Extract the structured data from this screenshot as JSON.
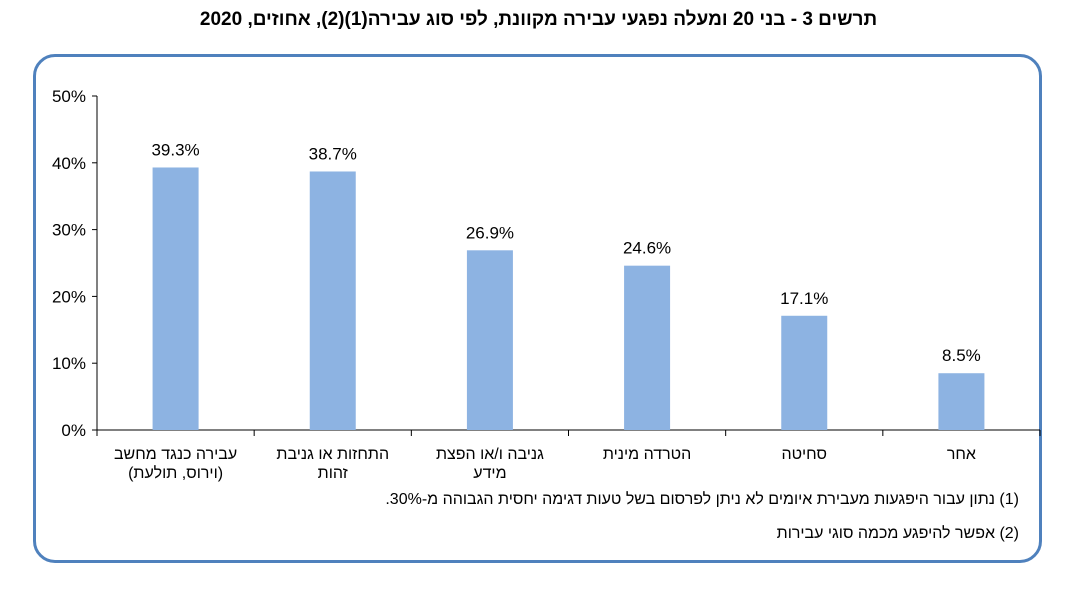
{
  "chart_data": {
    "type": "bar",
    "title": "תרשים 3 - בני 20 ומעלה נפגעי עבירה מקוונת, לפי סוג עבירה(1)(2), אחוזים, 2020",
    "categories": [
      [
        "עבירה כנגד מחשב",
        "(וירוס, תולעת)"
      ],
      [
        "התחזות או גניבת",
        "זהות"
      ],
      [
        "גניבה ו/או הפצת",
        "מידע"
      ],
      [
        "הטרדה מינית"
      ],
      [
        "סחיטה"
      ],
      [
        "אחר"
      ]
    ],
    "values": [
      39.3,
      38.7,
      26.9,
      24.6,
      17.1,
      8.5
    ],
    "data_labels": [
      "39.3%",
      "38.7%",
      "26.9%",
      "24.6%",
      "17.1%",
      "8.5%"
    ],
    "y_ticks": [
      "0%",
      "10%",
      "20%",
      "30%",
      "40%",
      "50%"
    ],
    "ylim": [
      0,
      50
    ],
    "bar_color": "#8db3e2",
    "frame_color": "#4f81bd",
    "grid": false,
    "footnotes": [
      "(1) נתון עבור היפגעות מעבירת איומים לא ניתן לפרסום בשל טעות דגימה יחסית הגבוהה מ-30%.",
      "(2) אפשר להיפגע מכמה סוגי עבירות"
    ]
  }
}
